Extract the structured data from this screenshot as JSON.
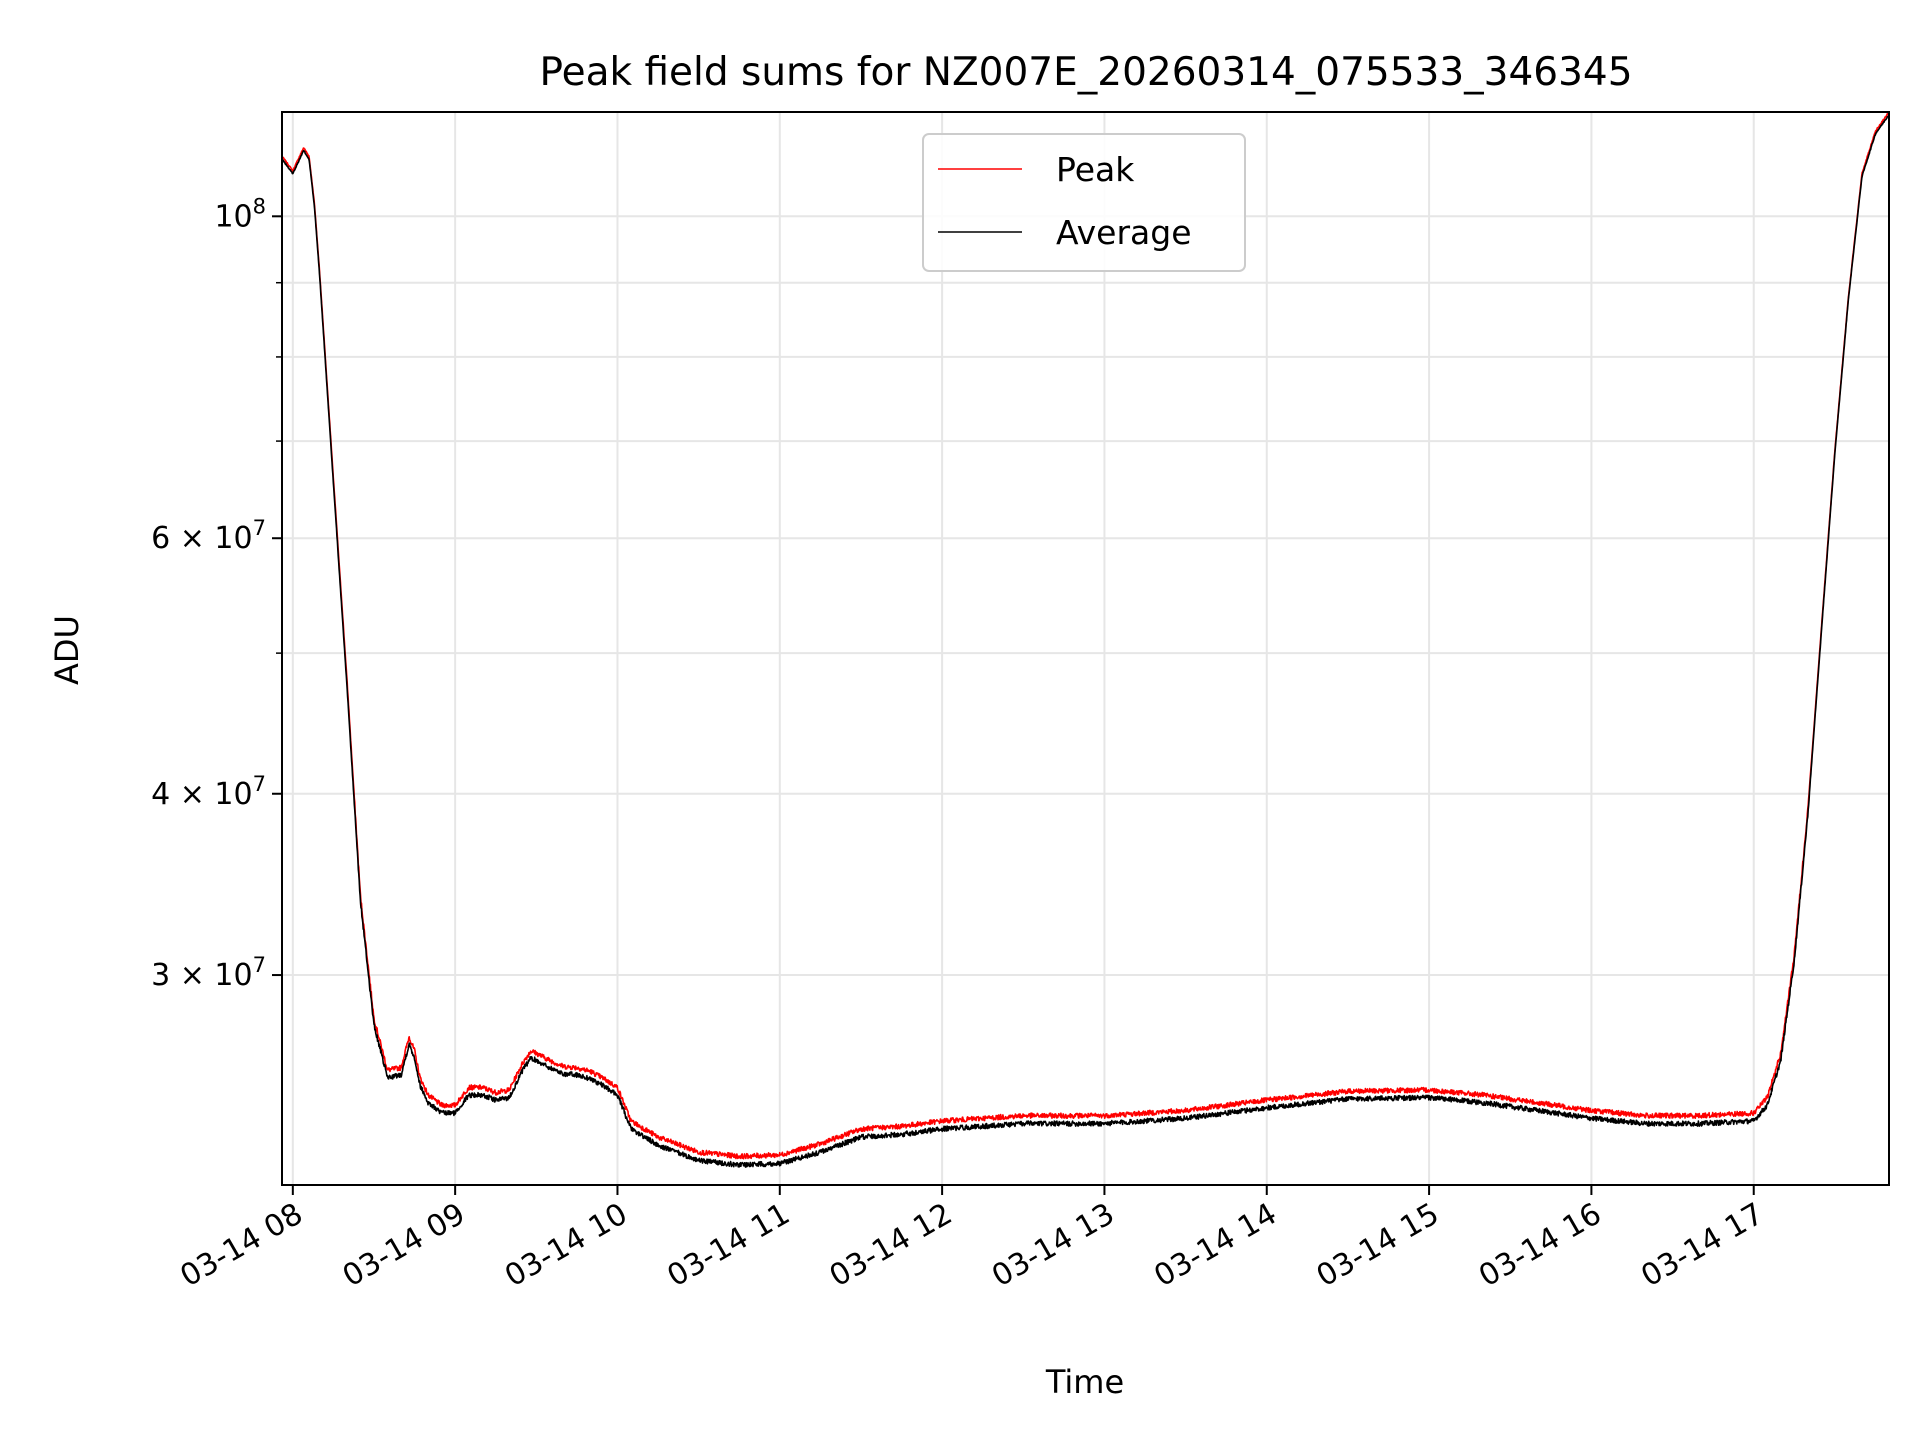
{
  "chart_data": {
    "type": "line",
    "title": "Peak field sums for NZ007E_20260314_075533_346345",
    "xlabel": "Time",
    "ylabel": "ADU",
    "y_scale": "log",
    "ylim": [
      21500000,
      118000000
    ],
    "xlim": [
      "2026-03-14 07:56",
      "2026-03-14 17:50"
    ],
    "x_ticks": [
      {
        "t": "2026-03-14 08:00",
        "label": "03-14 08"
      },
      {
        "t": "2026-03-14 09:00",
        "label": "03-14 09"
      },
      {
        "t": "2026-03-14 10:00",
        "label": "03-14 10"
      },
      {
        "t": "2026-03-14 11:00",
        "label": "03-14 11"
      },
      {
        "t": "2026-03-14 12:00",
        "label": "03-14 12"
      },
      {
        "t": "2026-03-14 13:00",
        "label": "03-14 13"
      },
      {
        "t": "2026-03-14 14:00",
        "label": "03-14 14"
      },
      {
        "t": "2026-03-14 15:00",
        "label": "03-14 15"
      },
      {
        "t": "2026-03-14 16:00",
        "label": "03-14 16"
      },
      {
        "t": "2026-03-14 17:00",
        "label": "03-14 17"
      }
    ],
    "y_major_ticks": [
      {
        "value": 30000000,
        "mantissa": "3",
        "exp": "7",
        "times": true
      },
      {
        "value": 40000000,
        "mantissa": "4",
        "exp": "7",
        "times": true
      },
      {
        "value": 60000000,
        "mantissa": "6",
        "exp": "7",
        "times": true
      },
      {
        "value": 100000000,
        "mantissa": "",
        "exp": "8",
        "times": false
      }
    ],
    "y_minor_ticks": [
      50000000,
      70000000,
      80000000,
      90000000
    ],
    "grid": true,
    "legend_position": "upper center",
    "series": [
      {
        "name": "Peak",
        "color": "#ff0000",
        "x": [
          "2026-03-14 07:56",
          "2026-03-14 08:00",
          "2026-03-14 08:04",
          "2026-03-14 08:06",
          "2026-03-14 08:08",
          "2026-03-14 08:10",
          "2026-03-14 08:15",
          "2026-03-14 08:20",
          "2026-03-14 08:25",
          "2026-03-14 08:30",
          "2026-03-14 08:35",
          "2026-03-14 08:40",
          "2026-03-14 08:43",
          "2026-03-14 08:45",
          "2026-03-14 08:47",
          "2026-03-14 08:50",
          "2026-03-14 08:55",
          "2026-03-14 09:00",
          "2026-03-14 09:05",
          "2026-03-14 09:10",
          "2026-03-14 09:15",
          "2026-03-14 09:20",
          "2026-03-14 09:25",
          "2026-03-14 09:28",
          "2026-03-14 09:30",
          "2026-03-14 09:35",
          "2026-03-14 09:40",
          "2026-03-14 09:45",
          "2026-03-14 09:50",
          "2026-03-14 09:55",
          "2026-03-14 10:00",
          "2026-03-14 10:05",
          "2026-03-14 10:15",
          "2026-03-14 10:30",
          "2026-03-14 10:45",
          "2026-03-14 11:00",
          "2026-03-14 11:15",
          "2026-03-14 11:30",
          "2026-03-14 11:45",
          "2026-03-14 12:00",
          "2026-03-14 12:30",
          "2026-03-14 13:00",
          "2026-03-14 13:30",
          "2026-03-14 14:00",
          "2026-03-14 14:30",
          "2026-03-14 15:00",
          "2026-03-14 15:20",
          "2026-03-14 15:40",
          "2026-03-14 16:00",
          "2026-03-14 16:20",
          "2026-03-14 16:40",
          "2026-03-14 17:00",
          "2026-03-14 17:05",
          "2026-03-14 17:10",
          "2026-03-14 17:15",
          "2026-03-14 17:20",
          "2026-03-14 17:25",
          "2026-03-14 17:30",
          "2026-03-14 17:35",
          "2026-03-14 17:40",
          "2026-03-14 17:45",
          "2026-03-14 17:50"
        ],
        "y": [
          110000000,
          107500000,
          111500000,
          110000000,
          102000000,
          91000000,
          66000000,
          48000000,
          34000000,
          28000000,
          25800000,
          25900000,
          27200000,
          26600000,
          25500000,
          24800000,
          24400000,
          24400000,
          25100000,
          25100000,
          24900000,
          25000000,
          26100000,
          26600000,
          26500000,
          26200000,
          25950000,
          25900000,
          25750000,
          25450000,
          25100000,
          23800000,
          23200000,
          22650000,
          22500000,
          22550000,
          22950000,
          23500000,
          23600000,
          23800000,
          24000000,
          24000000,
          24200000,
          24600000,
          24950000,
          25000000,
          24800000,
          24500000,
          24200000,
          24000000,
          24000000,
          24100000,
          24700000,
          26500000,
          31000000,
          39000000,
          52000000,
          69000000,
          88000000,
          107000000,
          114500000,
          118000000
        ]
      },
      {
        "name": "Average",
        "color": "#000000",
        "x": [
          "2026-03-14 07:56",
          "2026-03-14 08:00",
          "2026-03-14 08:04",
          "2026-03-14 08:06",
          "2026-03-14 08:08",
          "2026-03-14 08:10",
          "2026-03-14 08:15",
          "2026-03-14 08:20",
          "2026-03-14 08:25",
          "2026-03-14 08:30",
          "2026-03-14 08:35",
          "2026-03-14 08:40",
          "2026-03-14 08:43",
          "2026-03-14 08:45",
          "2026-03-14 08:47",
          "2026-03-14 08:50",
          "2026-03-14 08:55",
          "2026-03-14 09:00",
          "2026-03-14 09:05",
          "2026-03-14 09:10",
          "2026-03-14 09:15",
          "2026-03-14 09:20",
          "2026-03-14 09:25",
          "2026-03-14 09:28",
          "2026-03-14 09:30",
          "2026-03-14 09:35",
          "2026-03-14 09:40",
          "2026-03-14 09:45",
          "2026-03-14 09:50",
          "2026-03-14 09:55",
          "2026-03-14 10:00",
          "2026-03-14 10:05",
          "2026-03-14 10:15",
          "2026-03-14 10:30",
          "2026-03-14 10:45",
          "2026-03-14 11:00",
          "2026-03-14 11:15",
          "2026-03-14 11:30",
          "2026-03-14 11:45",
          "2026-03-14 12:00",
          "2026-03-14 12:30",
          "2026-03-14 13:00",
          "2026-03-14 13:30",
          "2026-03-14 14:00",
          "2026-03-14 14:30",
          "2026-03-14 15:00",
          "2026-03-14 15:20",
          "2026-03-14 15:40",
          "2026-03-14 16:00",
          "2026-03-14 16:20",
          "2026-03-14 16:40",
          "2026-03-14 17:00",
          "2026-03-14 17:05",
          "2026-03-14 17:10",
          "2026-03-14 17:15",
          "2026-03-14 17:20",
          "2026-03-14 17:25",
          "2026-03-14 17:30",
          "2026-03-14 17:35",
          "2026-03-14 17:40",
          "2026-03-14 17:45",
          "2026-03-14 17:50"
        ],
        "y": [
          109500000,
          107000000,
          111000000,
          109500000,
          101500000,
          90500000,
          65500000,
          47500000,
          33700000,
          27700000,
          25500000,
          25600000,
          26900000,
          26300000,
          25200000,
          24500000,
          24100000,
          24100000,
          24800000,
          24800000,
          24600000,
          24700000,
          25800000,
          26300000,
          26200000,
          25900000,
          25650000,
          25600000,
          25450000,
          25150000,
          24800000,
          23500000,
          22900000,
          22350000,
          22200000,
          22250000,
          22650000,
          23200000,
          23300000,
          23500000,
          23700000,
          23700000,
          23900000,
          24300000,
          24650000,
          24700000,
          24500000,
          24200000,
          23900000,
          23700000,
          23700000,
          23800000,
          24400000,
          26200000,
          30700000,
          38700000,
          51700000,
          68700000,
          87700000,
          106500000,
          114000000,
          117500000
        ]
      }
    ]
  }
}
